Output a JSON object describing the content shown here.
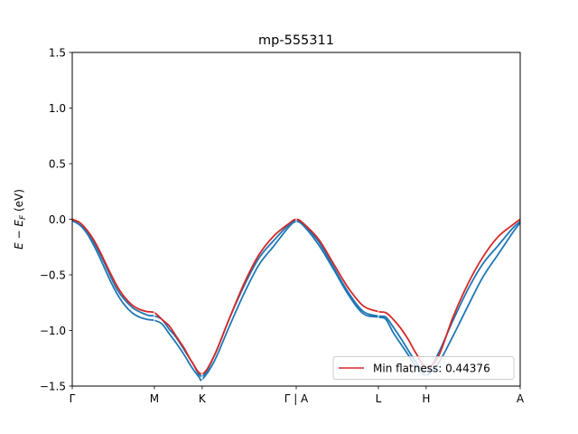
{
  "chart_data": {
    "type": "line",
    "title": "mp-555311",
    "xlabel": "",
    "ylabel": "E − E_F (eV)",
    "ylabel_parts": {
      "main": "E − E",
      "sub": "F",
      "unit": " (eV)"
    },
    "xlim": [
      0,
      3.0
    ],
    "ylim": [
      -1.5,
      1.5
    ],
    "grid": false,
    "legend_position": "lower right",
    "x_ticks": [
      {
        "label": "Γ",
        "x": 0.0
      },
      {
        "label": "M",
        "x": 0.55
      },
      {
        "label": "K",
        "x": 0.87
      },
      {
        "label": "Γ | A",
        "x": 1.5
      },
      {
        "label": "L",
        "x": 2.05
      },
      {
        "label": "H",
        "x": 2.37
      },
      {
        "label": "A",
        "x": 3.0
      }
    ],
    "y_ticks": [
      1.5,
      1.0,
      0.5,
      0.0,
      -0.5,
      -1.0,
      -1.5
    ],
    "y_tick_labels": [
      "1.5",
      "1.0",
      "0.5",
      "0.0",
      "−0.5",
      "−1.0",
      "−1.5"
    ],
    "series": [
      {
        "color": "#1f77b4",
        "x": [
          0.0,
          0.05,
          0.1,
          0.15,
          0.2,
          0.25,
          0.3,
          0.35,
          0.4,
          0.45,
          0.5,
          0.55,
          0.6,
          0.65,
          0.7,
          0.75,
          0.8,
          0.85,
          0.87,
          0.95,
          1.05,
          1.15,
          1.25,
          1.35,
          1.45,
          1.5,
          1.55,
          1.65,
          1.75,
          1.85,
          1.95,
          2.05,
          2.1,
          2.15,
          2.2,
          2.25,
          2.3,
          2.37,
          2.45,
          2.55,
          2.65,
          2.75,
          2.85,
          2.95,
          3.0
        ],
        "values": [
          -0.01,
          -0.05,
          -0.13,
          -0.25,
          -0.39,
          -0.54,
          -0.67,
          -0.77,
          -0.84,
          -0.88,
          -0.9,
          -0.91,
          -0.94,
          -1.03,
          -1.12,
          -1.22,
          -1.33,
          -1.42,
          -1.44,
          -1.28,
          -0.97,
          -0.67,
          -0.41,
          -0.24,
          -0.07,
          -0.02,
          -0.06,
          -0.23,
          -0.45,
          -0.68,
          -0.85,
          -0.88,
          -0.9,
          -1.02,
          -1.12,
          -1.22,
          -1.32,
          -1.4,
          -1.3,
          -1.05,
          -0.78,
          -0.52,
          -0.32,
          -0.12,
          -0.03
        ]
      },
      {
        "color": "#1f77b4",
        "x": [
          0.0,
          0.1,
          0.2,
          0.3,
          0.4,
          0.5,
          0.55,
          0.6,
          0.65,
          0.7,
          0.8,
          0.87,
          0.95,
          1.05,
          1.15,
          1.25,
          1.35,
          1.45,
          1.5,
          1.55,
          1.65,
          1.75,
          1.85,
          1.95,
          2.05,
          2.1,
          2.15,
          2.2,
          2.3,
          2.37,
          2.45,
          2.55,
          2.65,
          2.75,
          2.85,
          2.95,
          3.0
        ],
        "values": [
          -0.01,
          -0.11,
          -0.35,
          -0.63,
          -0.79,
          -0.86,
          -0.87,
          -0.9,
          -0.99,
          -1.07,
          -1.28,
          -1.41,
          -1.23,
          -0.9,
          -0.6,
          -0.35,
          -0.19,
          -0.05,
          -0.01,
          -0.05,
          -0.2,
          -0.43,
          -0.66,
          -0.83,
          -0.87,
          -0.88,
          -0.97,
          -1.07,
          -1.28,
          -1.37,
          -1.21,
          -0.91,
          -0.63,
          -0.4,
          -0.24,
          -0.08,
          -0.02
        ]
      },
      {
        "name": "Min flatness: 0.44376",
        "color": "#d62728",
        "x": [
          0.0,
          0.05,
          0.1,
          0.15,
          0.2,
          0.25,
          0.3,
          0.35,
          0.4,
          0.45,
          0.5,
          0.55,
          0.6,
          0.65,
          0.7,
          0.75,
          0.8,
          0.87,
          0.95,
          1.05,
          1.15,
          1.25,
          1.35,
          1.45,
          1.5,
          1.55,
          1.65,
          1.75,
          1.85,
          1.95,
          2.05,
          2.1,
          2.15,
          2.2,
          2.25,
          2.3,
          2.37,
          2.45,
          2.55,
          2.65,
          2.75,
          2.85,
          2.95,
          3.0
        ],
        "values": [
          0.0,
          -0.03,
          -0.1,
          -0.2,
          -0.33,
          -0.47,
          -0.6,
          -0.7,
          -0.77,
          -0.81,
          -0.83,
          -0.84,
          -0.9,
          -0.96,
          -1.06,
          -1.16,
          -1.28,
          -1.39,
          -1.23,
          -0.9,
          -0.58,
          -0.32,
          -0.15,
          -0.04,
          0.0,
          -0.04,
          -0.18,
          -0.4,
          -0.62,
          -0.78,
          -0.83,
          -0.84,
          -0.9,
          -0.98,
          -1.08,
          -1.2,
          -1.33,
          -1.24,
          -0.88,
          -0.58,
          -0.34,
          -0.16,
          -0.05,
          0.0
        ]
      }
    ]
  }
}
